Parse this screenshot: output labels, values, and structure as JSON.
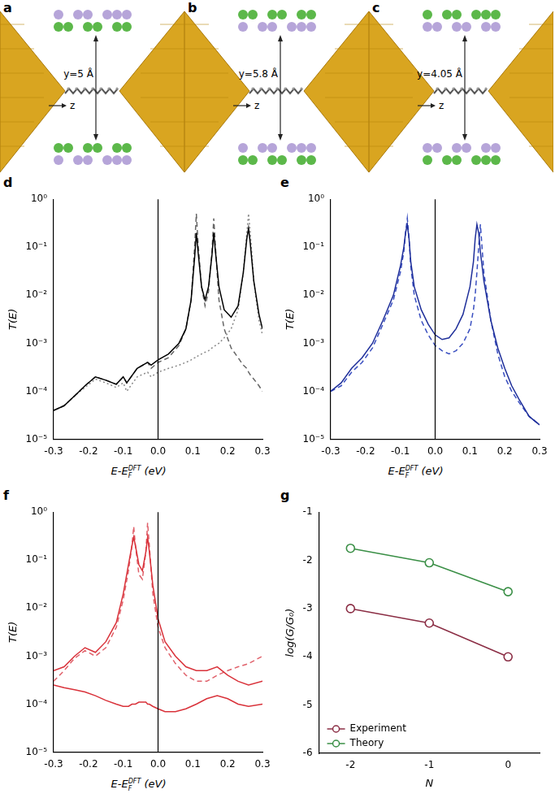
{
  "diagrams": [
    {
      "panel": "a",
      "y_label": "y=5 Å",
      "z_label": "z"
    },
    {
      "panel": "b",
      "y_label": "y=5.8 Å",
      "z_label": "z"
    },
    {
      "panel": "c",
      "y_label": "y=4.05 Å",
      "z_label": "z"
    }
  ],
  "chart_data": [
    {
      "panel": "d",
      "type": "line",
      "log": "y",
      "grid": false,
      "tick_labels": true,
      "x_label": {
        "main": "E-E",
        "sub": "F",
        "sup": "DFT",
        "unit": " (eV)"
      },
      "y_label": "T(E)",
      "xlim": [
        -0.3,
        0.3
      ],
      "xticks": [
        -0.3,
        -0.2,
        -0.1,
        {
          "value": 0,
          "label": "0.0"
        },
        0.1,
        0.2,
        0.3
      ],
      "ylim": [
        1e-05,
        1
      ],
      "yticks": [
        {
          "value": 1e-05,
          "label": "10⁻⁵"
        },
        {
          "value": 0.0001,
          "label": "10⁻⁴"
        },
        {
          "value": 0.001,
          "label": "10⁻³"
        },
        {
          "value": 0.01,
          "label": "10⁻²"
        },
        {
          "value": 0.1,
          "label": "10⁻¹"
        },
        {
          "value": 1,
          "label": "10⁰"
        }
      ],
      "reference_line_x": 0,
      "x": [
        -0.3,
        -0.27,
        -0.24,
        -0.21,
        -0.18,
        -0.15,
        -0.12,
        -0.1,
        -0.09,
        -0.06,
        -0.03,
        -0.02,
        0,
        0.03,
        0.06,
        0.08,
        0.095,
        0.105,
        0.11,
        0.115,
        0.125,
        0.135,
        0.145,
        0.155,
        0.16,
        0.165,
        0.175,
        0.19,
        0.21,
        0.23,
        0.245,
        0.255,
        0.26,
        0.265,
        0.275,
        0.29,
        0.3
      ],
      "series": [
        {
          "color": "#000000",
          "line_style": "solid",
          "values": [
            4e-05,
            5e-05,
            8e-05,
            0.00013,
            0.0002,
            0.00017,
            0.00014,
            0.0002,
            0.00015,
            0.0003,
            0.0004,
            0.00035,
            0.00045,
            0.0006,
            0.001,
            0.002,
            0.008,
            0.06,
            0.2,
            0.08,
            0.015,
            0.008,
            0.015,
            0.07,
            0.2,
            0.08,
            0.015,
            0.005,
            0.0035,
            0.006,
            0.03,
            0.15,
            0.25,
            0.12,
            0.02,
            0.004,
            0.002
          ]
        },
        {
          "color": "#666666",
          "line_style": "dashed",
          "values": [
            4e-05,
            5e-05,
            8e-05,
            0.00013,
            0.0002,
            0.00017,
            0.00014,
            0.0002,
            0.00015,
            0.0003,
            0.0004,
            0.0003,
            0.0004,
            0.0005,
            0.0009,
            0.002,
            0.008,
            0.1,
            0.5,
            0.12,
            0.015,
            0.006,
            0.012,
            0.08,
            0.4,
            0.1,
            0.008,
            0.002,
            0.0008,
            0.0005,
            0.00035,
            0.0003,
            0.00025,
            0.00022,
            0.00018,
            0.00013,
            0.0001
          ]
        },
        {
          "color": "#888888",
          "line_style": "dotted",
          "values": [
            4e-05,
            5e-05,
            8e-05,
            0.00012,
            0.00018,
            0.00015,
            0.00012,
            0.00015,
            0.0001,
            0.0002,
            0.00025,
            0.0002,
            0.00025,
            0.0003,
            0.00035,
            0.0004,
            0.00045,
            0.0005,
            0.0005,
            0.00055,
            0.0006,
            0.00065,
            0.0007,
            0.0008,
            0.00085,
            0.0009,
            0.001,
            0.0013,
            0.002,
            0.005,
            0.03,
            0.2,
            0.5,
            0.2,
            0.02,
            0.003,
            0.0015
          ]
        }
      ]
    },
    {
      "panel": "e",
      "type": "line",
      "log": "y",
      "grid": false,
      "tick_labels": true,
      "x_label": {
        "main": "E-E",
        "sub": "F",
        "sup": "DFT",
        "unit": " (eV)"
      },
      "y_label": "T(E)",
      "xlim": [
        -0.3,
        0.3
      ],
      "xticks": [
        -0.3,
        -0.2,
        -0.1,
        {
          "value": 0,
          "label": "0.0"
        },
        0.1,
        0.2,
        0.3
      ],
      "ylim": [
        1e-05,
        1
      ],
      "yticks": [
        {
          "value": 1e-05,
          "label": "10⁻⁵"
        },
        {
          "value": 0.0001,
          "label": "10⁻⁴"
        },
        {
          "value": 0.001,
          "label": "10⁻³"
        },
        {
          "value": 0.01,
          "label": "10⁻²"
        },
        {
          "value": 0.1,
          "label": "10⁻¹"
        },
        {
          "value": 1,
          "label": "10⁰"
        }
      ],
      "reference_line_x": 0,
      "x": [
        -0.3,
        -0.27,
        -0.24,
        -0.21,
        -0.18,
        -0.15,
        -0.12,
        -0.1,
        -0.09,
        -0.085,
        -0.08,
        -0.075,
        -0.07,
        -0.06,
        -0.04,
        -0.02,
        0,
        0.02,
        0.04,
        0.06,
        0.08,
        0.1,
        0.11,
        0.115,
        0.12,
        0.125,
        0.13,
        0.14,
        0.16,
        0.18,
        0.2,
        0.22,
        0.24,
        0.27,
        0.3
      ],
      "series": [
        {
          "color": "#1f2f9a",
          "line_style": "solid",
          "values": [
            0.0001,
            0.00015,
            0.0003,
            0.0005,
            0.001,
            0.003,
            0.01,
            0.04,
            0.1,
            0.2,
            0.3,
            0.15,
            0.05,
            0.015,
            0.005,
            0.0025,
            0.0015,
            0.0012,
            0.0013,
            0.002,
            0.004,
            0.015,
            0.05,
            0.15,
            0.3,
            0.2,
            0.08,
            0.02,
            0.003,
            0.0008,
            0.0003,
            0.00013,
            7e-05,
            3e-05,
            2e-05
          ]
        },
        {
          "color": "#3a4fc0",
          "line_style": "dashed",
          "values": [
            0.0001,
            0.00013,
            0.00025,
            0.0004,
            0.0008,
            0.0025,
            0.008,
            0.03,
            0.08,
            0.2,
            0.4,
            0.15,
            0.04,
            0.01,
            0.003,
            0.0015,
            0.0009,
            0.0007,
            0.0006,
            0.0007,
            0.001,
            0.002,
            0.005,
            0.01,
            0.03,
            0.1,
            0.3,
            0.03,
            0.003,
            0.0006,
            0.0002,
            0.0001,
            6e-05,
            3e-05,
            2e-05
          ]
        }
      ]
    },
    {
      "panel": "f",
      "type": "line",
      "log": "y",
      "grid": false,
      "tick_labels": true,
      "x_label": {
        "main": "E-E",
        "sub": "F",
        "sup": "DFT",
        "unit": " (eV)"
      },
      "y_label": "T(E)",
      "xlim": [
        -0.3,
        0.3
      ],
      "xticks": [
        -0.3,
        -0.2,
        -0.1,
        {
          "value": 0,
          "label": "0.0"
        },
        0.1,
        0.2,
        0.3
      ],
      "ylim": [
        1e-05,
        1
      ],
      "yticks": [
        {
          "value": 1e-05,
          "label": "10⁻⁵"
        },
        {
          "value": 0.0001,
          "label": "10⁻⁴"
        },
        {
          "value": 0.001,
          "label": "10⁻³"
        },
        {
          "value": 0.01,
          "label": "10⁻²"
        },
        {
          "value": 0.1,
          "label": "10⁻¹"
        },
        {
          "value": 1,
          "label": "10⁰"
        }
      ],
      "reference_line_x": 0,
      "x": [
        -0.3,
        -0.27,
        -0.24,
        -0.21,
        -0.18,
        -0.15,
        -0.12,
        -0.1,
        -0.085,
        -0.075,
        -0.07,
        -0.065,
        -0.055,
        -0.045,
        -0.035,
        -0.03,
        -0.025,
        -0.015,
        0,
        0.02,
        0.05,
        0.08,
        0.11,
        0.14,
        0.17,
        0.2,
        0.23,
        0.26,
        0.3
      ],
      "series": [
        {
          "color": "#d9323a",
          "line_style": "solid",
          "values": [
            0.0005,
            0.0006,
            0.001,
            0.0015,
            0.0012,
            0.002,
            0.005,
            0.02,
            0.08,
            0.2,
            0.3,
            0.2,
            0.08,
            0.06,
            0.15,
            0.3,
            0.15,
            0.03,
            0.006,
            0.002,
            0.001,
            0.0006,
            0.0005,
            0.0005,
            0.0006,
            0.0004,
            0.0003,
            0.00025,
            0.0003
          ]
        },
        {
          "color": "#e0606a",
          "line_style": "dashed",
          "values": [
            0.0003,
            0.0005,
            0.0009,
            0.0013,
            0.001,
            0.0015,
            0.004,
            0.015,
            0.06,
            0.2,
            0.5,
            0.2,
            0.05,
            0.04,
            0.15,
            0.6,
            0.2,
            0.02,
            0.004,
            0.0015,
            0.0007,
            0.0004,
            0.0003,
            0.0003,
            0.0004,
            0.0005,
            0.0006,
            0.0007,
            0.001
          ]
        },
        {
          "color": "#d9323a",
          "line_style": "solid",
          "values": [
            0.00025,
            0.00022,
            0.0002,
            0.00018,
            0.00015,
            0.00012,
            0.0001,
            9e-05,
            9e-05,
            0.0001,
            0.0001,
            0.0001,
            0.00011,
            0.00011,
            0.00011,
            0.0001,
            0.0001,
            9e-05,
            8e-05,
            7e-05,
            7e-05,
            8e-05,
            0.0001,
            0.00013,
            0.00015,
            0.00013,
            0.0001,
            9e-05,
            0.0001
          ]
        }
      ]
    },
    {
      "panel": "g",
      "type": "line",
      "grid": false,
      "tick_labels": true,
      "legend": "lower left",
      "x_label": "N",
      "y_label": "log(G/G₀)",
      "x": [
        -2,
        -1,
        0
      ],
      "xlim": [
        -2.4,
        0.4
      ],
      "xticks": [
        -2,
        -1,
        0
      ],
      "ylim": [
        -6,
        -1
      ],
      "yticks": [
        -6,
        -5,
        -4,
        -3,
        -2,
        -1
      ],
      "series": [
        {
          "name": "Experiment",
          "color": "#8b2e45",
          "marker": "open_circle",
          "line_style": "solid",
          "values": [
            -3,
            -3.3,
            -4
          ]
        },
        {
          "name": "Theory",
          "color": "#3a8f46",
          "marker": "open_circle",
          "line_style": "solid",
          "values": [
            -1.75,
            -2.05,
            -2.65
          ]
        }
      ]
    }
  ]
}
